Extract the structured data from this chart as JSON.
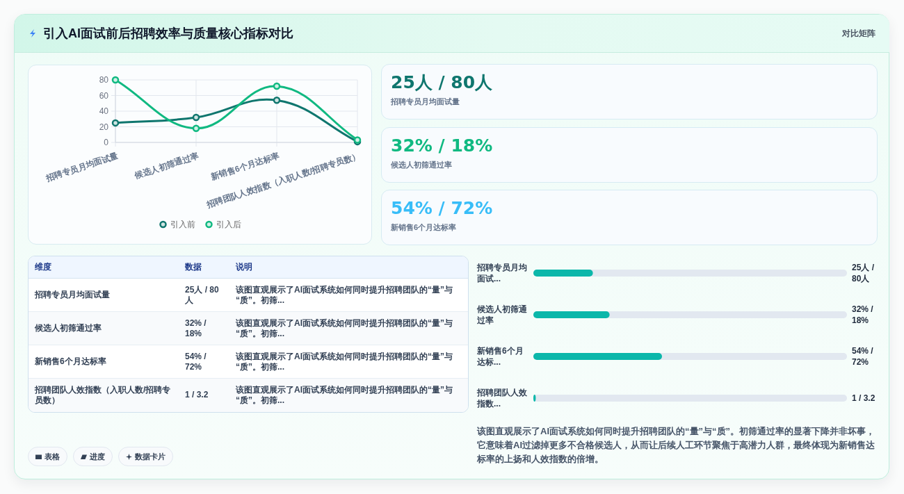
{
  "chart_data": [
    {
      "type": "other",
      "title": "引入AI面试前后招聘效率与质量核心指标对比",
      "annotations": [
        "对比矩阵"
      ]
    },
    {
      "type": "line",
      "categories": [
        "招聘专员月均面试量",
        "候选人初筛通过率",
        "新销售6个月达标率",
        "招聘团队人效指数（入职人数/招聘专员数）"
      ],
      "series": [
        {
          "name": "引入前",
          "color": "#0f766e",
          "values": [
            25,
            32,
            54,
            1
          ]
        },
        {
          "name": "引入后",
          "color": "#10b981",
          "values": [
            80,
            18,
            72,
            3.2
          ]
        }
      ],
      "ylim": [
        0,
        80
      ],
      "yticks": [
        0,
        20,
        40,
        60,
        80
      ],
      "grid": true,
      "legend": "bottom",
      "marker": "circle"
    },
    {
      "type": "other",
      "annotations": [
        "25人 / 80人",
        "招聘专员月均面试量",
        "32% / 18%",
        "候选人初筛通过率",
        "54% / 72%",
        "新销售6个月达标率"
      ],
      "colors": [
        "#0f766e",
        "#10b981",
        "#38bdf8"
      ]
    },
    {
      "type": "other",
      "annotations": [
        "维度",
        "数据",
        "说明",
        "招聘专员月均面试量",
        "25人 / 80人",
        "该图直观展示了AI面试系统如何同时提升招聘团队的“量”与“质”。初筛...",
        "候选人初筛通过率",
        "32% / 18%",
        "该图直观展示了AI面试系统如何同时提升招聘团队的“量”与“质”。初筛...",
        "新销售6个月达标率",
        "54% / 72%",
        "该图直观展示了AI面试系统如何同时提升招聘团队的“量”与“质”。初筛...",
        "招聘团队人效指数（入职人数/招聘专员数）",
        "1 / 3.2",
        "该图直观展示了AI面试系统如何同时提升招聘团队的“量”与“质”。初筛..."
      ]
    },
    {
      "type": "bar",
      "orientation": "horizontal",
      "categories": [
        "招聘专员月均面试...",
        "候选人初筛通过率",
        "新销售6个月达标...",
        "招聘团队人效指数..."
      ],
      "values": [
        25,
        32,
        54,
        1
      ],
      "color": "#0bb7aa",
      "value_labels": [
        "25人 / 80人",
        "32% / 18%",
        "54% / 72%",
        "1 / 3.2"
      ],
      "annotations": [
        "该图直观展示了AI面试系统如何同时提升招聘团队的“量”与“质”。初筛通过率的显著下降并非坏事，它意味着AI过滤掉更多不合格候选人，从而让后续人工环节聚焦于高潜力人群，最终体现为新销售达标率的上扬和人效指数的倍增。"
      ]
    },
    {
      "type": "other",
      "annotations": [
        "表格",
        "进度",
        "数据卡片"
      ]
    }
  ]
}
